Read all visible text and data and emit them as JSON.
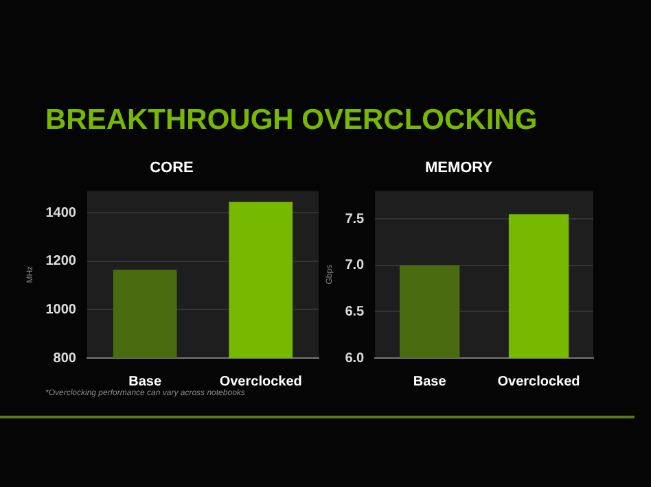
{
  "chart_data": [
    {
      "type": "bar",
      "title": "CORE",
      "ylabel": "MHz",
      "categories": [
        "Base",
        "Overclocked"
      ],
      "values": [
        1165,
        1445
      ],
      "colors": [
        "#4a6b10",
        "#76b900"
      ],
      "ylim": [
        800,
        1490
      ],
      "yticks": [
        800,
        1000,
        1200,
        1400
      ],
      "grid": "y",
      "annotations": [
        "BREAKTHROUGH OVERCLOCKING",
        "*Overclocking performance can vary across notebooks"
      ]
    },
    {
      "type": "bar",
      "title": "MEMORY",
      "ylabel": "Gbps",
      "categories": [
        "Base",
        "Overclocked"
      ],
      "values": [
        7.0,
        7.55
      ],
      "colors": [
        "#4a6b10",
        "#76b900"
      ],
      "ylim": [
        6.0,
        7.8
      ],
      "yticks": [
        {
          "value": 6.0,
          "label": "6.0"
        },
        {
          "value": 6.5,
          "label": "6.5"
        },
        {
          "value": 7.0,
          "label": "7.0"
        },
        {
          "value": 7.5,
          "label": "7.5"
        }
      ],
      "grid": "y"
    }
  ]
}
